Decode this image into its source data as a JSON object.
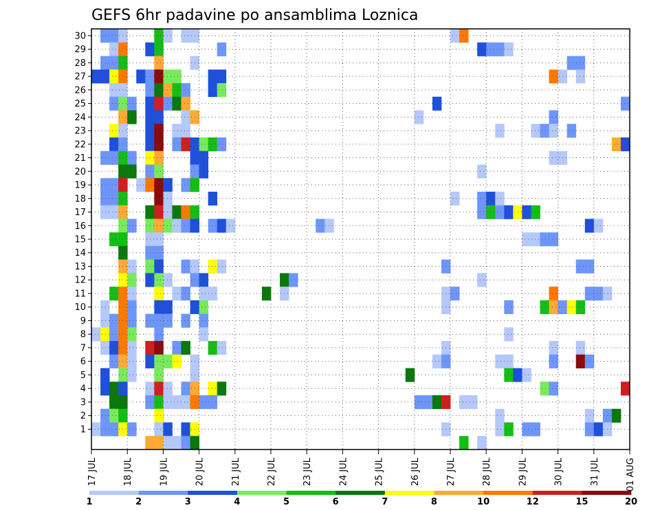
{
  "chart_data": {
    "type": "heatmap",
    "title": "GEFS 6hr padavine po ansamblima Loznica",
    "x_dates": [
      "17 JUL",
      "18 JUL",
      "19 JUL",
      "20 JUL",
      "21 JUL",
      "22 JUL",
      "23 JUL",
      "24 JUL",
      "25 JUL",
      "26 JUL",
      "27 JUL",
      "28 JUL",
      "29 JUL",
      "30 JUL",
      "31 JUL",
      "01 AUG"
    ],
    "x_unit": "6hr steps (4 per day) from 17 JUL 00Z",
    "y_members": [
      1,
      2,
      3,
      4,
      5,
      6,
      7,
      8,
      9,
      10,
      11,
      12,
      13,
      14,
      15,
      16,
      17,
      18,
      19,
      20,
      21,
      22,
      23,
      24,
      25,
      26,
      27,
      28,
      29,
      30
    ],
    "grid": true,
    "levels": [
      1,
      2,
      3,
      4,
      5,
      6,
      7,
      8,
      10,
      12,
      15,
      20
    ],
    "colorbar_labels": [
      "1",
      "2",
      "3",
      "4",
      "5",
      "6",
      "7",
      "8",
      "10",
      "12",
      "15",
      "20"
    ],
    "colors": [
      "#b4c8fa",
      "#6e96fa",
      "#1e50dc",
      "#78eb5a",
      "#14be14",
      "#0a780a",
      "#ffff00",
      "#ffaa32",
      "#ff7800",
      "#d21e1e",
      "#8c0a0a"
    ],
    "cells_note": "each cell: [member, timestep index (0 = 17 JUL 00Z), color class 0-10]",
    "cells": [
      [
        30,
        1,
        1
      ],
      [
        30,
        2,
        1
      ],
      [
        30,
        3,
        0
      ],
      [
        30,
        7,
        4
      ],
      [
        30,
        8,
        0
      ],
      [
        30,
        10,
        0
      ],
      [
        30,
        11,
        0
      ],
      [
        30,
        40,
        0
      ],
      [
        30,
        41,
        8
      ],
      [
        29,
        2,
        0
      ],
      [
        29,
        3,
        8
      ],
      [
        29,
        6,
        2
      ],
      [
        29,
        7,
        4
      ],
      [
        29,
        14,
        1
      ],
      [
        29,
        43,
        2
      ],
      [
        29,
        44,
        1
      ],
      [
        29,
        45,
        1
      ],
      [
        29,
        46,
        0
      ],
      [
        28,
        1,
        1
      ],
      [
        28,
        2,
        1
      ],
      [
        28,
        3,
        4
      ],
      [
        28,
        7,
        7
      ],
      [
        28,
        11,
        0
      ],
      [
        28,
        53,
        1
      ],
      [
        28,
        54,
        1
      ],
      [
        27,
        0,
        2
      ],
      [
        27,
        1,
        2
      ],
      [
        27,
        2,
        6
      ],
      [
        27,
        3,
        8
      ],
      [
        27,
        5,
        2
      ],
      [
        27,
        6,
        1
      ],
      [
        27,
        7,
        10
      ],
      [
        27,
        8,
        3
      ],
      [
        27,
        9,
        3
      ],
      [
        27,
        13,
        2
      ],
      [
        27,
        14,
        2
      ],
      [
        27,
        51,
        8
      ],
      [
        27,
        52,
        0
      ],
      [
        27,
        54,
        0
      ],
      [
        26,
        2,
        0
      ],
      [
        26,
        3,
        0
      ],
      [
        26,
        6,
        1
      ],
      [
        26,
        7,
        5
      ],
      [
        26,
        8,
        7
      ],
      [
        26,
        9,
        4
      ],
      [
        26,
        10,
        1
      ],
      [
        26,
        13,
        2
      ],
      [
        26,
        14,
        3
      ],
      [
        25,
        2,
        1
      ],
      [
        25,
        3,
        3
      ],
      [
        25,
        4,
        1
      ],
      [
        25,
        6,
        2
      ],
      [
        25,
        7,
        9
      ],
      [
        25,
        8,
        1
      ],
      [
        25,
        9,
        5
      ],
      [
        25,
        10,
        7
      ],
      [
        25,
        38,
        2
      ],
      [
        25,
        59,
        1
      ],
      [
        24,
        3,
        7
      ],
      [
        24,
        4,
        5
      ],
      [
        24,
        6,
        2
      ],
      [
        24,
        7,
        2
      ],
      [
        24,
        10,
        0
      ],
      [
        24,
        11,
        7
      ],
      [
        24,
        36,
        0
      ],
      [
        24,
        51,
        1
      ],
      [
        23,
        2,
        6
      ],
      [
        23,
        3,
        0
      ],
      [
        23,
        6,
        2
      ],
      [
        23,
        7,
        10
      ],
      [
        23,
        9,
        0
      ],
      [
        23,
        10,
        0
      ],
      [
        23,
        45,
        0
      ],
      [
        23,
        49,
        0
      ],
      [
        23,
        50,
        1
      ],
      [
        23,
        51,
        0
      ],
      [
        23,
        53,
        1
      ],
      [
        22,
        2,
        2
      ],
      [
        22,
        3,
        1
      ],
      [
        22,
        6,
        2
      ],
      [
        22,
        7,
        10
      ],
      [
        22,
        9,
        1
      ],
      [
        22,
        10,
        9
      ],
      [
        22,
        11,
        2
      ],
      [
        22,
        12,
        3
      ],
      [
        22,
        13,
        4
      ],
      [
        22,
        14,
        1
      ],
      [
        22,
        58,
        7
      ],
      [
        22,
        59,
        2
      ],
      [
        21,
        1,
        1
      ],
      [
        21,
        2,
        1
      ],
      [
        21,
        3,
        4
      ],
      [
        21,
        4,
        1
      ],
      [
        21,
        6,
        6
      ],
      [
        21,
        7,
        7
      ],
      [
        21,
        11,
        2
      ],
      [
        21,
        12,
        2
      ],
      [
        21,
        51,
        0
      ],
      [
        21,
        52,
        0
      ],
      [
        20,
        3,
        5
      ],
      [
        20,
        4,
        5
      ],
      [
        20,
        6,
        1
      ],
      [
        20,
        7,
        3
      ],
      [
        20,
        11,
        1
      ],
      [
        20,
        12,
        2
      ],
      [
        20,
        43,
        0
      ],
      [
        19,
        1,
        1
      ],
      [
        19,
        2,
        1
      ],
      [
        19,
        3,
        9
      ],
      [
        19,
        5,
        0
      ],
      [
        19,
        6,
        8
      ],
      [
        19,
        7,
        10
      ],
      [
        19,
        8,
        2
      ],
      [
        19,
        10,
        1
      ],
      [
        19,
        11,
        4
      ],
      [
        18,
        1,
        1
      ],
      [
        18,
        2,
        1
      ],
      [
        18,
        3,
        4
      ],
      [
        18,
        7,
        10
      ],
      [
        18,
        8,
        0
      ],
      [
        18,
        13,
        2
      ],
      [
        18,
        40,
        0
      ],
      [
        18,
        43,
        1
      ],
      [
        18,
        44,
        2
      ],
      [
        18,
        45,
        0
      ],
      [
        17,
        1,
        0
      ],
      [
        17,
        2,
        0
      ],
      [
        17,
        3,
        7
      ],
      [
        17,
        6,
        5
      ],
      [
        17,
        7,
        9
      ],
      [
        17,
        8,
        0
      ],
      [
        17,
        9,
        5
      ],
      [
        17,
        10,
        8
      ],
      [
        17,
        11,
        4
      ],
      [
        17,
        43,
        1
      ],
      [
        17,
        44,
        4
      ],
      [
        17,
        45,
        1
      ],
      [
        17,
        46,
        2
      ],
      [
        17,
        47,
        6
      ],
      [
        17,
        48,
        2
      ],
      [
        17,
        49,
        4
      ],
      [
        16,
        3,
        3
      ],
      [
        16,
        4,
        1
      ],
      [
        16,
        6,
        3
      ],
      [
        16,
        7,
        7
      ],
      [
        16,
        8,
        3
      ],
      [
        16,
        9,
        0
      ],
      [
        16,
        10,
        1
      ],
      [
        16,
        11,
        2
      ],
      [
        16,
        13,
        1
      ],
      [
        16,
        14,
        2
      ],
      [
        16,
        15,
        0
      ],
      [
        16,
        25,
        1
      ],
      [
        16,
        26,
        0
      ],
      [
        16,
        55,
        2
      ],
      [
        16,
        56,
        0
      ],
      [
        15,
        2,
        4
      ],
      [
        15,
        3,
        4
      ],
      [
        15,
        6,
        0
      ],
      [
        15,
        7,
        0
      ],
      [
        15,
        48,
        0
      ],
      [
        15,
        49,
        0
      ],
      [
        15,
        50,
        1
      ],
      [
        15,
        51,
        1
      ],
      [
        14,
        3,
        5
      ],
      [
        14,
        6,
        1
      ],
      [
        14,
        7,
        1
      ],
      [
        13,
        3,
        7
      ],
      [
        13,
        4,
        0
      ],
      [
        13,
        6,
        3
      ],
      [
        13,
        7,
        2
      ],
      [
        13,
        10,
        1
      ],
      [
        13,
        11,
        0
      ],
      [
        13,
        13,
        6
      ],
      [
        13,
        14,
        0
      ],
      [
        13,
        39,
        1
      ],
      [
        13,
        54,
        1
      ],
      [
        13,
        55,
        1
      ],
      [
        12,
        3,
        6
      ],
      [
        12,
        4,
        3
      ],
      [
        12,
        6,
        2
      ],
      [
        12,
        7,
        3
      ],
      [
        12,
        8,
        0
      ],
      [
        12,
        11,
        1
      ],
      [
        12,
        12,
        2
      ],
      [
        12,
        21,
        5
      ],
      [
        12,
        22,
        1
      ],
      [
        12,
        43,
        0
      ],
      [
        11,
        2,
        4
      ],
      [
        11,
        3,
        8
      ],
      [
        11,
        4,
        0
      ],
      [
        11,
        7,
        6
      ],
      [
        11,
        9,
        0
      ],
      [
        11,
        10,
        1
      ],
      [
        11,
        12,
        0
      ],
      [
        11,
        13,
        0
      ],
      [
        11,
        19,
        5
      ],
      [
        11,
        21,
        0
      ],
      [
        11,
        39,
        0
      ],
      [
        11,
        40,
        1
      ],
      [
        11,
        51,
        8
      ],
      [
        11,
        55,
        1
      ],
      [
        11,
        56,
        1
      ],
      [
        11,
        57,
        0
      ],
      [
        10,
        1,
        0
      ],
      [
        10,
        3,
        8
      ],
      [
        10,
        4,
        1
      ],
      [
        10,
        7,
        2
      ],
      [
        10,
        8,
        2
      ],
      [
        10,
        11,
        2
      ],
      [
        10,
        12,
        3
      ],
      [
        10,
        39,
        0
      ],
      [
        10,
        46,
        1
      ],
      [
        10,
        50,
        4
      ],
      [
        10,
        51,
        7
      ],
      [
        10,
        52,
        1
      ],
      [
        10,
        53,
        6
      ],
      [
        10,
        54,
        4
      ],
      [
        9,
        1,
        0
      ],
      [
        9,
        2,
        1
      ],
      [
        9,
        3,
        8
      ],
      [
        9,
        4,
        1
      ],
      [
        9,
        6,
        1
      ],
      [
        9,
        7,
        1
      ],
      [
        9,
        8,
        1
      ],
      [
        9,
        10,
        1
      ],
      [
        9,
        12,
        1
      ],
      [
        8,
        0,
        0
      ],
      [
        8,
        1,
        6
      ],
      [
        8,
        2,
        1
      ],
      [
        8,
        3,
        8
      ],
      [
        8,
        4,
        3
      ],
      [
        8,
        7,
        1
      ],
      [
        8,
        12,
        0
      ],
      [
        8,
        46,
        0
      ],
      [
        7,
        1,
        0
      ],
      [
        7,
        2,
        2
      ],
      [
        7,
        3,
        8
      ],
      [
        7,
        4,
        0
      ],
      [
        7,
        6,
        9
      ],
      [
        7,
        7,
        10
      ],
      [
        7,
        9,
        1
      ],
      [
        7,
        10,
        5
      ],
      [
        7,
        13,
        4
      ],
      [
        7,
        14,
        0
      ],
      [
        7,
        39,
        0
      ],
      [
        7,
        51,
        0
      ],
      [
        7,
        54,
        0
      ],
      [
        6,
        2,
        1
      ],
      [
        6,
        3,
        7
      ],
      [
        6,
        4,
        0
      ],
      [
        6,
        6,
        2
      ],
      [
        6,
        7,
        3
      ],
      [
        6,
        8,
        3
      ],
      [
        6,
        9,
        6
      ],
      [
        6,
        11,
        0
      ],
      [
        6,
        38,
        0
      ],
      [
        6,
        39,
        1
      ],
      [
        6,
        45,
        0
      ],
      [
        6,
        46,
        0
      ],
      [
        6,
        51,
        1
      ],
      [
        6,
        54,
        10
      ],
      [
        6,
        55,
        1
      ],
      [
        5,
        1,
        2
      ],
      [
        5,
        3,
        3
      ],
      [
        5,
        4,
        0
      ],
      [
        5,
        7,
        3
      ],
      [
        5,
        11,
        0
      ],
      [
        5,
        35,
        5
      ],
      [
        5,
        46,
        4
      ],
      [
        5,
        47,
        2
      ],
      [
        5,
        48,
        0
      ],
      [
        4,
        1,
        2
      ],
      [
        4,
        2,
        5
      ],
      [
        4,
        3,
        2
      ],
      [
        4,
        6,
        0
      ],
      [
        4,
        7,
        9
      ],
      [
        4,
        8,
        0
      ],
      [
        4,
        10,
        1
      ],
      [
        4,
        11,
        7
      ],
      [
        4,
        13,
        6
      ],
      [
        4,
        14,
        5
      ],
      [
        4,
        50,
        3
      ],
      [
        4,
        51,
        1
      ],
      [
        4,
        59,
        9
      ],
      [
        3,
        2,
        5
      ],
      [
        3,
        3,
        5
      ],
      [
        3,
        6,
        1
      ],
      [
        3,
        7,
        4
      ],
      [
        3,
        8,
        0
      ],
      [
        3,
        9,
        0
      ],
      [
        3,
        10,
        0
      ],
      [
        3,
        11,
        8
      ],
      [
        3,
        12,
        1
      ],
      [
        3,
        13,
        1
      ],
      [
        3,
        36,
        1
      ],
      [
        3,
        37,
        1
      ],
      [
        3,
        38,
        5
      ],
      [
        3,
        39,
        9
      ],
      [
        3,
        41,
        0
      ],
      [
        3,
        42,
        0
      ],
      [
        2,
        1,
        1
      ],
      [
        2,
        2,
        3
      ],
      [
        2,
        3,
        4
      ],
      [
        2,
        7,
        6
      ],
      [
        2,
        45,
        0
      ],
      [
        2,
        55,
        0
      ],
      [
        2,
        57,
        1
      ],
      [
        2,
        58,
        5
      ],
      [
        1,
        0,
        0
      ],
      [
        1,
        1,
        1
      ],
      [
        1,
        2,
        1
      ],
      [
        1,
        3,
        6
      ],
      [
        1,
        4,
        1
      ],
      [
        1,
        7,
        0
      ],
      [
        1,
        8,
        2
      ],
      [
        1,
        10,
        2
      ],
      [
        1,
        11,
        6
      ],
      [
        1,
        39,
        0
      ],
      [
        1,
        45,
        0
      ],
      [
        1,
        46,
        4
      ],
      [
        1,
        48,
        1
      ],
      [
        1,
        49,
        1
      ],
      [
        1,
        55,
        1
      ],
      [
        1,
        56,
        2
      ],
      [
        1,
        57,
        0
      ],
      [
        0,
        6,
        7
      ],
      [
        0,
        7,
        7
      ],
      [
        0,
        8,
        0
      ],
      [
        0,
        9,
        0
      ],
      [
        0,
        10,
        1
      ],
      [
        0,
        11,
        5
      ],
      [
        0,
        41,
        4
      ],
      [
        0,
        43,
        0
      ]
    ]
  }
}
